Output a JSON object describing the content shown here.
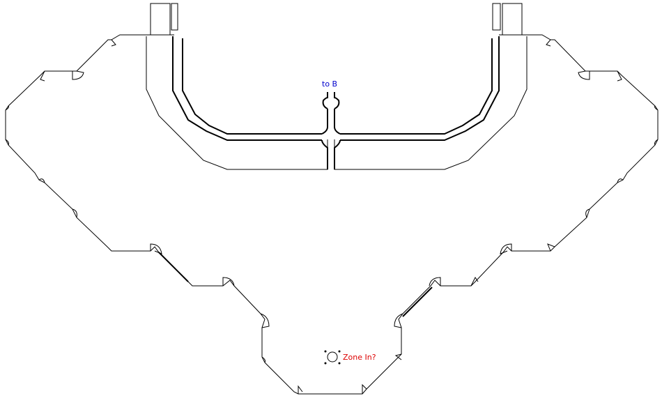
{
  "map": {
    "labels": {
      "to_b": "to B",
      "zone_in": "Zone In?"
    },
    "colors": {
      "background": "#ffffff",
      "walls": "#000000",
      "to_b_label": "#0000cc",
      "zone_in_label": "#dd0000"
    },
    "icons": {
      "zone_in_marker": "zone-in-circle-icon"
    }
  }
}
